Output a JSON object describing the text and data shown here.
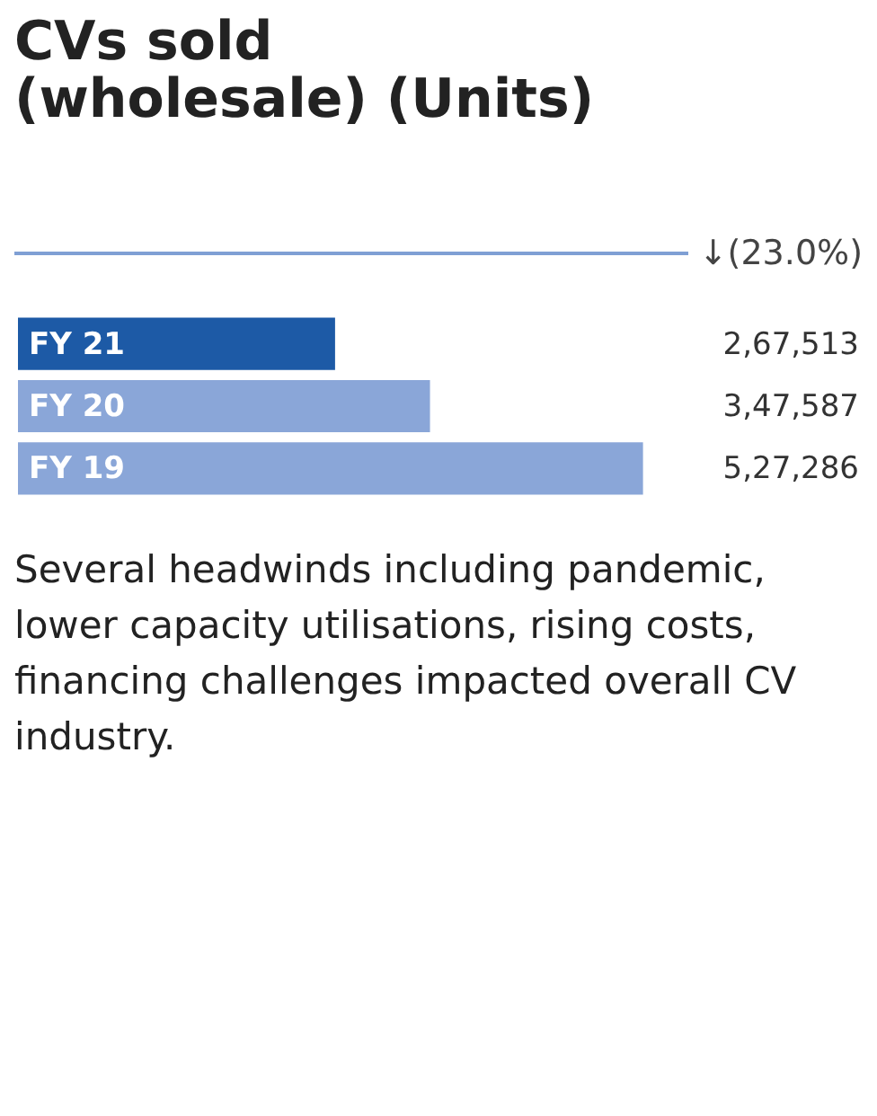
{
  "chart_data": {
    "type": "bar",
    "orientation": "horizontal",
    "title": "CVs sold\n(wholesale) (Units)",
    "categories": [
      "FY 21",
      "FY 20",
      "FY 19"
    ],
    "values": [
      267513,
      347587,
      527286
    ],
    "value_labels": [
      "2,67,513",
      "3,47,587",
      "5,27,286"
    ],
    "colors": [
      "#1d5aa6",
      "#8aa6d8",
      "#8aa6d8"
    ],
    "annotations": [
      "↓(23.0%)",
      "Several headwinds including pandemic, lower capacity utilisations, rising costs, financing challenges impacted overall CV industry."
    ]
  }
}
